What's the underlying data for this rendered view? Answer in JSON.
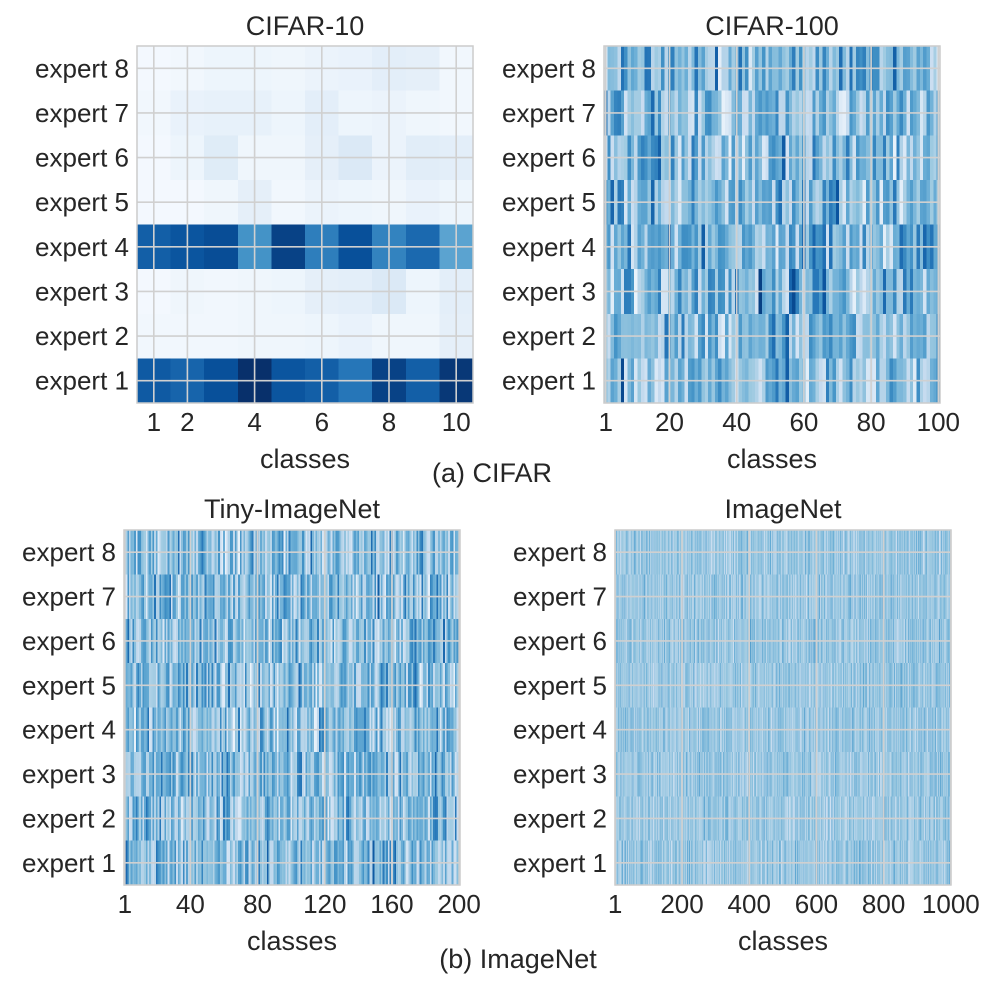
{
  "figure": {
    "caption_a": "(a) CIFAR",
    "caption_b": "(b) ImageNet"
  },
  "colors": {
    "colormap": "Blues",
    "light": "#f7fbff",
    "dark": "#08306b",
    "grid": "#d0d0d0"
  },
  "chart_data": [
    {
      "type": "heatmap",
      "title": "CIFAR-10",
      "xlabel": "classes",
      "ylabel": "",
      "rows": [
        "expert 8",
        "expert 7",
        "expert 6",
        "expert 5",
        "expert 4",
        "expert 3",
        "expert 2",
        "expert 1"
      ],
      "x_range": [
        1,
        10
      ],
      "x_ticks": [
        "1",
        "2",
        "4",
        "6",
        "8",
        "10"
      ],
      "x_tick_values": [
        1,
        2,
        4,
        6,
        8,
        10
      ],
      "grid": true,
      "values": [
        [
          0.02,
          0.03,
          0.05,
          0.05,
          0.04,
          0.06,
          0.07,
          0.1,
          0.09,
          0.03
        ],
        [
          0.03,
          0.07,
          0.08,
          0.08,
          0.05,
          0.1,
          0.05,
          0.06,
          0.04,
          0.03
        ],
        [
          0.02,
          0.05,
          0.12,
          0.04,
          0.04,
          0.09,
          0.14,
          0.06,
          0.11,
          0.1
        ],
        [
          0.02,
          0.02,
          0.04,
          0.09,
          0.03,
          0.06,
          0.05,
          0.04,
          0.07,
          0.05
        ],
        [
          0.82,
          0.86,
          0.89,
          0.62,
          0.93,
          0.7,
          0.88,
          0.68,
          0.78,
          0.55
        ],
        [
          0.02,
          0.04,
          0.03,
          0.04,
          0.05,
          0.09,
          0.1,
          0.14,
          0.05,
          0.1
        ],
        [
          0.03,
          0.03,
          0.03,
          0.04,
          0.04,
          0.05,
          0.07,
          0.04,
          0.04,
          0.09
        ],
        [
          0.84,
          0.8,
          0.88,
          1.0,
          0.86,
          0.82,
          0.73,
          0.93,
          0.82,
          0.97
        ]
      ]
    },
    {
      "type": "heatmap",
      "title": "CIFAR-100",
      "xlabel": "classes",
      "ylabel": "",
      "rows": [
        "expert 8",
        "expert 7",
        "expert 6",
        "expert 5",
        "expert 4",
        "expert 3",
        "expert 2",
        "expert 1"
      ],
      "x_range": [
        1,
        100
      ],
      "x_ticks": [
        "1",
        "20",
        "40",
        "60",
        "80",
        "100"
      ],
      "x_tick_values": [
        1,
        20,
        40,
        60,
        80,
        100
      ],
      "grid": true,
      "values_description": "100 classes x 8 experts, moderate values with mixed light/dark variation",
      "value_mean": 0.45,
      "value_spread": 0.26
    },
    {
      "type": "heatmap",
      "title": "Tiny-ImageNet",
      "xlabel": "classes",
      "ylabel": "",
      "rows": [
        "expert 8",
        "expert 7",
        "expert 6",
        "expert 5",
        "expert 4",
        "expert 3",
        "expert 2",
        "expert 1"
      ],
      "x_range": [
        1,
        200
      ],
      "x_ticks": [
        "1",
        "40",
        "80",
        "120",
        "160",
        "200"
      ],
      "x_tick_values": [
        1,
        40,
        80,
        120,
        160,
        200
      ],
      "grid": true,
      "value_mean": 0.43,
      "value_spread": 0.22
    },
    {
      "type": "heatmap",
      "title": "ImageNet",
      "xlabel": "classes",
      "ylabel": "",
      "rows": [
        "expert 8",
        "expert 7",
        "expert 6",
        "expert 5",
        "expert 4",
        "expert 3",
        "expert 2",
        "expert 1"
      ],
      "x_range": [
        1,
        1000
      ],
      "x_ticks": [
        "1",
        "200",
        "400",
        "600",
        "800",
        "1000"
      ],
      "x_tick_values": [
        1,
        200,
        400,
        600,
        800,
        1000
      ],
      "grid": true,
      "value_mean": 0.38,
      "value_spread": 0.12
    }
  ]
}
